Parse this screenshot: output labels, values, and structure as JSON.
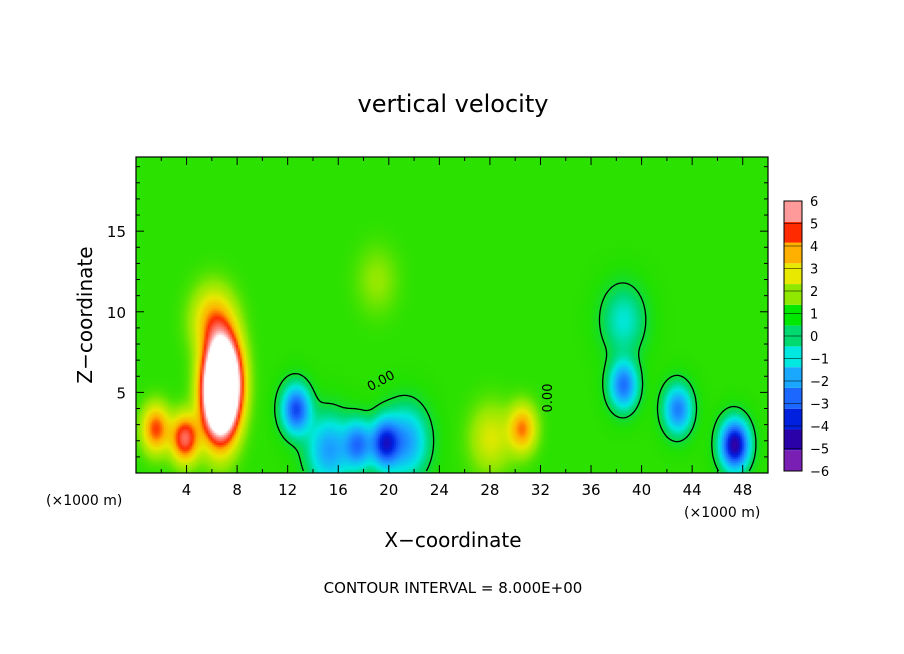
{
  "chart_data": {
    "type": "heatmap",
    "title": "vertical velocity",
    "xlabel": "X−coordinate",
    "ylabel": "Z−coordinate",
    "x_unit_left": "(×1000 m)",
    "x_unit_right": "(×1000 m)",
    "xlim": [
      0,
      50
    ],
    "ylim": [
      0,
      19.6
    ],
    "xticks": [
      "4",
      "8",
      "12",
      "16",
      "20",
      "24",
      "28",
      "32",
      "36",
      "40",
      "44",
      "48"
    ],
    "yticks": [
      "5",
      "10",
      "15"
    ],
    "contour_level_label": "0.00",
    "footer": "CONTOUR INTERVAL = 8.000E+00",
    "colorbar": {
      "range": [
        -6,
        6
      ],
      "labels": [
        "6",
        "5",
        "4",
        "3",
        "2",
        "1",
        "0",
        "−1",
        "−2",
        "−3",
        "−4",
        "−5",
        "−6"
      ],
      "colors": [
        "#7a1fb3",
        "#2a00a8",
        "#0020e0",
        "#1c68ff",
        "#1aa8ff",
        "#00e8e0",
        "#00d870",
        "#00e800",
        "#90e800",
        "#e8e800",
        "#ffb000",
        "#ff2a00",
        "#ff9a9a"
      ]
    },
    "features": [
      {
        "x": 6.8,
        "z": 5.8,
        "w": 12,
        "kind": "updraft core"
      },
      {
        "x": 6.5,
        "z": 4.5,
        "w": 7,
        "kind": "updraft"
      },
      {
        "x": 3.8,
        "z": 2.2,
        "w": 4.5,
        "kind": "updraft"
      },
      {
        "x": 1.5,
        "z": 2.8,
        "w": 3.5,
        "kind": "updraft"
      },
      {
        "x": 6.0,
        "z": 9.5,
        "w": 2.5,
        "kind": "updraft"
      },
      {
        "x": 12.6,
        "z": 4.0,
        "w": -3.8,
        "kind": "downdraft"
      },
      {
        "x": 19.6,
        "z": 1.9,
        "w": -4,
        "kind": "downdraft"
      },
      {
        "x": 17.5,
        "z": 1.8,
        "w": -3,
        "kind": "downdraft"
      },
      {
        "x": 21.3,
        "z": 2.0,
        "w": -2.5,
        "kind": "downdraft"
      },
      {
        "x": 15.2,
        "z": 1.5,
        "w": -2.5,
        "kind": "downdraft"
      },
      {
        "x": 38.5,
        "z": 5.5,
        "w": -3.2,
        "kind": "downdraft"
      },
      {
        "x": 38.5,
        "z": 9.5,
        "w": -1.3,
        "kind": "downdraft"
      },
      {
        "x": 42.8,
        "z": 4.0,
        "w": -3,
        "kind": "downdraft"
      },
      {
        "x": 47.3,
        "z": 1.8,
        "w": -5.5,
        "kind": "downdraft"
      },
      {
        "x": 30.5,
        "z": 2.8,
        "w": 3,
        "kind": "updraft"
      },
      {
        "x": 28.0,
        "z": 2.2,
        "w": 1.5,
        "kind": "updraft"
      },
      {
        "x": 19.0,
        "z": 12,
        "w": 0.7,
        "kind": "updraft"
      }
    ]
  }
}
